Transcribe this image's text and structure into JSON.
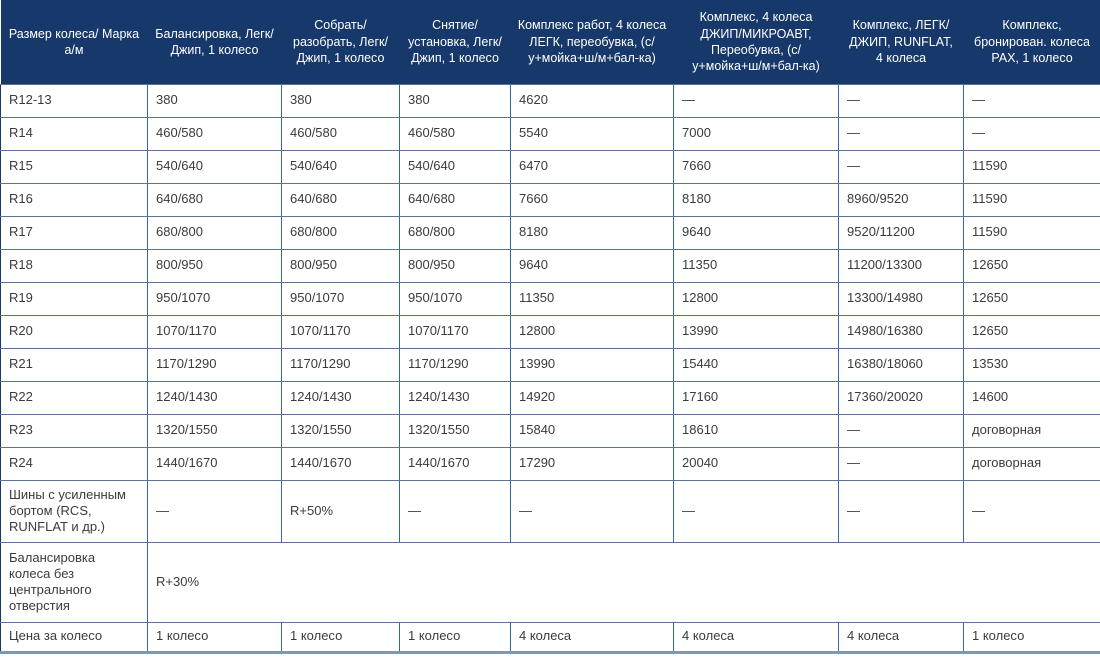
{
  "chart_data": {
    "type": "table",
    "title": "",
    "columns": [
      "Размер колеса/ Марка а/м",
      "Балансировка, Легк/Джип, 1 колесо",
      "Собрать/ разобрать, Легк/Джип, 1 колесо",
      "Снятие/ установка, Легк/Джип, 1 колесо",
      "Комплекс работ, 4 колеса ЛЕГК, переобувка, (с/у+мойка+ш/м+бал-ка)",
      "Комплекс, 4 колеса ДЖИП/МИКРОАВТ, Переобувка, (с/у+мойка+ш/м+бал-ка)",
      "Комплекс, ЛЕГК/ ДЖИП, RUNFLAT, 4 колеса",
      "Комплекс, бронирован. колеса PAX, 1 колесо"
    ],
    "rows": [
      {
        "label": "R12-13",
        "values": [
          "380",
          "380",
          "380",
          "4620",
          "—",
          "—",
          "—"
        ]
      },
      {
        "label": "R14",
        "values": [
          "460/580",
          "460/580",
          "460/580",
          "5540",
          "7000",
          "—",
          "—"
        ]
      },
      {
        "label": "R15",
        "values": [
          "540/640",
          "540/640",
          "540/640",
          "6470",
          "7660",
          "—",
          "11590"
        ]
      },
      {
        "label": "R16",
        "values": [
          "640/680",
          "640/680",
          "640/680",
          "7660",
          "8180",
          "8960/9520",
          "11590"
        ]
      },
      {
        "label": "R17",
        "values": [
          "680/800",
          "680/800",
          "680/800",
          "8180",
          "9640",
          "9520/11200",
          "11590"
        ]
      },
      {
        "label": "R18",
        "values": [
          "800/950",
          "800/950",
          "800/950",
          "9640",
          "11350",
          "11200/13300",
          "12650"
        ]
      },
      {
        "label": "R19",
        "values": [
          "950/1070",
          "950/1070",
          "950/1070",
          "11350",
          "12800",
          "13300/14980",
          "12650"
        ]
      },
      {
        "label": "R20",
        "values": [
          "1070/1170",
          "1070/1170",
          "1070/1170",
          "12800",
          "13990",
          "14980/16380",
          "12650"
        ]
      },
      {
        "label": "R21",
        "values": [
          "1170/1290",
          "1170/1290",
          "1170/1290",
          "13990",
          "15440",
          "16380/18060",
          "13530"
        ]
      },
      {
        "label": "R22",
        "values": [
          "1240/1430",
          "1240/1430",
          "1240/1430",
          "14920",
          "17160",
          "17360/20020",
          "14600"
        ]
      },
      {
        "label": "R23",
        "values": [
          "1320/1550",
          "1320/1550",
          "1320/1550",
          "15840",
          "18610",
          "—",
          "договорная"
        ]
      },
      {
        "label": "R24",
        "values": [
          "1440/1670",
          "1440/1670",
          "1440/1670",
          "17290",
          "20040",
          "—",
          "договорная"
        ]
      },
      {
        "label": "Шины с усиленным бортом (RCS, RUNFLAT и др.)",
        "values": [
          "—",
          "R+50%",
          "—",
          "—",
          "—",
          "—",
          "—"
        ]
      },
      {
        "label": "Балансировка колеса без центрального отверстия",
        "merged_value": "R+30%",
        "colspan": 7
      },
      {
        "label": "Цена за колесо",
        "values": [
          "1 колесо",
          "1 колесо",
          "1 колесо",
          "4 колеса",
          "4 колеса",
          "4 колеса",
          "1 колесо"
        ]
      }
    ],
    "colors": {
      "header_bg": "#17386a",
      "header_text": "#ffffff",
      "border_vertical": "#3465a4",
      "border_horizontal": "#5d7396",
      "outer_bottom_border": "#8097b3",
      "cell_text": "#3b3b3b"
    },
    "layout_hints": {
      "grid": "on",
      "header_position": "top"
    }
  }
}
